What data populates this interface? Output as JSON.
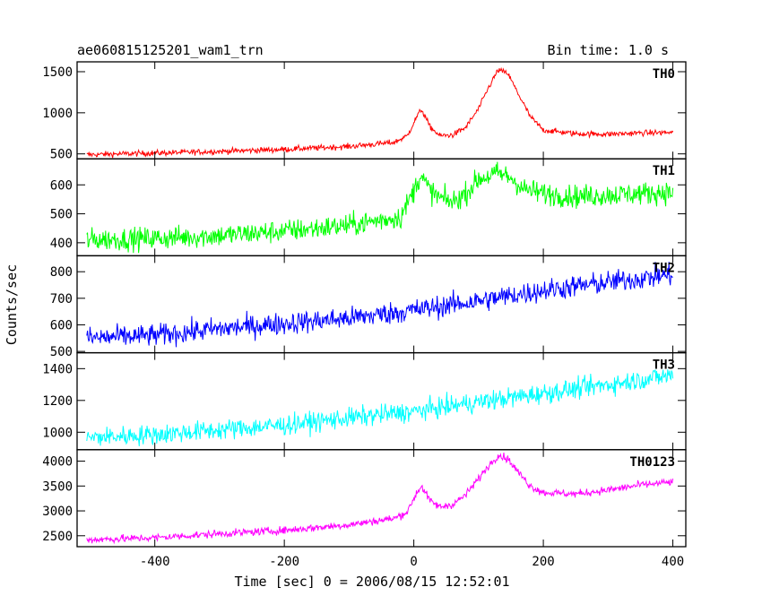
{
  "header": {
    "title": "ae060815125201_wam1_trn",
    "bin_time": "Bin time: 1.0 s"
  },
  "xlabel": "Time [sec] 0 = 2006/08/15 12:52:01",
  "ylabel": "Counts/sec",
  "chart_data": {
    "type": "line",
    "title": "ae060815125201_wam1_trn",
    "subtitle": "Bin time: 1.0 s",
    "xlabel": "Time [sec] 0 = 2006/08/15 12:52:01",
    "ylabel": "Counts/sec",
    "xlim": [
      -520,
      420
    ],
    "x_ticks": [
      -400,
      -200,
      0,
      200,
      400
    ],
    "x_range_data": [
      -505,
      400
    ],
    "grid": false,
    "legend": "none",
    "series": [
      {
        "name": "TH0",
        "color": "#ff0000",
        "ylim": [
          440,
          1620
        ],
        "y_ticks": [
          500,
          1000,
          1500
        ],
        "noise": 25,
        "x": [
          -505,
          -400,
          -300,
          -200,
          -100,
          -30,
          -10,
          5,
          12,
          25,
          40,
          60,
          80,
          100,
          115,
          130,
          145,
          160,
          180,
          200,
          250,
          300,
          350,
          400
        ],
        "y": [
          490,
          510,
          530,
          555,
          590,
          640,
          720,
          960,
          1040,
          830,
          720,
          730,
          820,
          1050,
          1300,
          1520,
          1480,
          1250,
          950,
          790,
          745,
          740,
          755,
          760
        ]
      },
      {
        "name": "TH1",
        "color": "#00ff00",
        "ylim": [
          355,
          690
        ],
        "y_ticks": [
          400,
          500,
          600
        ],
        "noise": 28,
        "x": [
          -505,
          -400,
          -300,
          -200,
          -100,
          -20,
          0,
          10,
          25,
          40,
          60,
          80,
          100,
          130,
          150,
          170,
          200,
          250,
          300,
          350,
          400
        ],
        "y": [
          410,
          415,
          425,
          440,
          460,
          490,
          580,
          635,
          580,
          555,
          540,
          570,
          620,
          640,
          625,
          585,
          570,
          560,
          565,
          570,
          575
        ]
      },
      {
        "name": "TH2",
        "color": "#0000ff",
        "ylim": [
          495,
          860
        ],
        "y_ticks": [
          500,
          600,
          700,
          800
        ],
        "noise": 30,
        "x": [
          -505,
          -400,
          -300,
          -200,
          -100,
          0,
          100,
          200,
          300,
          400
        ],
        "y": [
          550,
          560,
          585,
          605,
          625,
          655,
          690,
          730,
          760,
          790
        ]
      },
      {
        "name": "TH3",
        "color": "#00ffff",
        "ylim": [
          890,
          1500
        ],
        "y_ticks": [
          1000,
          1200,
          1400
        ],
        "noise": 45,
        "x": [
          -505,
          -400,
          -300,
          -200,
          -100,
          0,
          100,
          200,
          300,
          400
        ],
        "y": [
          965,
          985,
          1015,
          1045,
          1090,
          1130,
          1190,
          1245,
          1300,
          1360
        ]
      },
      {
        "name": "TH0123",
        "color": "#ff00ff",
        "ylim": [
          2280,
          4230
        ],
        "y_ticks": [
          2500,
          3000,
          3500,
          4000
        ],
        "noise": 55,
        "x": [
          -505,
          -400,
          -300,
          -200,
          -100,
          -30,
          -10,
          5,
          12,
          25,
          40,
          60,
          80,
          100,
          115,
          130,
          145,
          160,
          180,
          200,
          250,
          300,
          350,
          400
        ],
        "y": [
          2420,
          2460,
          2540,
          2610,
          2720,
          2850,
          2980,
          3380,
          3500,
          3200,
          3080,
          3130,
          3320,
          3650,
          3900,
          4120,
          4050,
          3800,
          3500,
          3370,
          3340,
          3420,
          3520,
          3580
        ]
      }
    ]
  }
}
